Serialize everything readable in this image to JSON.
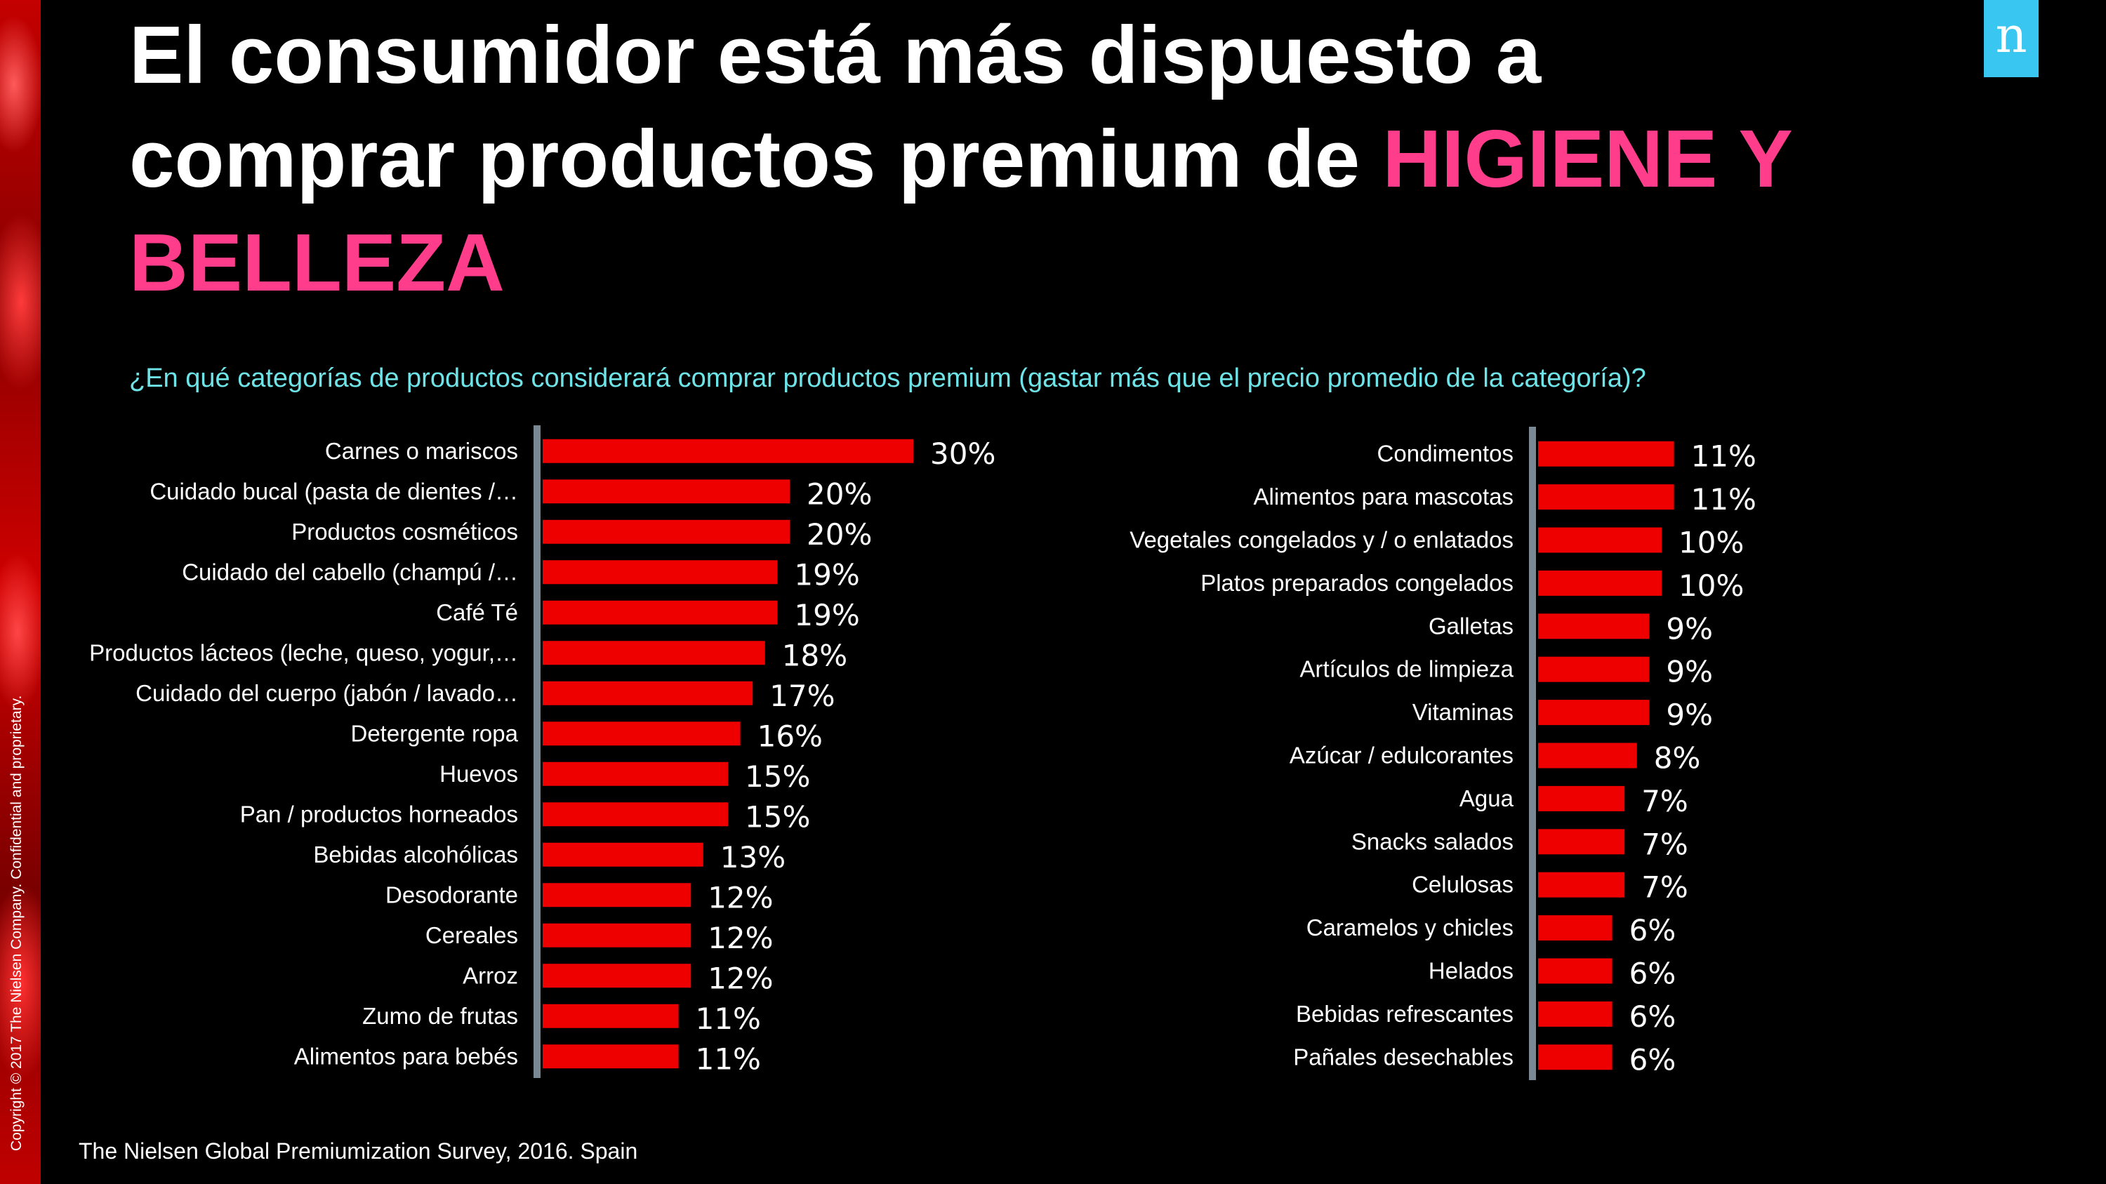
{
  "title": {
    "line1": "El consumidor está más dispuesto a",
    "line2": "comprar productos premium de ",
    "highlight_part1": "HIGIENE Y",
    "highlight_part2": "BELLEZA"
  },
  "logo": {
    "letter": "n"
  },
  "question": "¿En qué categorías de productos considerará comprar productos premium (gastar más que el precio promedio de la categoría)?",
  "source": "The Nielsen Global Premiumization Survey, 2016. Spain",
  "copyright": "Copyright © 2017 The Nielsen Company. Confidential and proprietary.",
  "colors": {
    "bar": "#ee0000",
    "axis": "#7a8893",
    "highlight": "#ff3d8b",
    "question": "#6fe4e8",
    "logo_bg": "#39c6f0"
  },
  "chart_data": [
    {
      "type": "bar",
      "orientation": "horizontal",
      "categories": [
        "Carnes o mariscos",
        "Cuidado bucal (pasta de dientes /…",
        "Productos cosméticos",
        "Cuidado del cabello (champú /…",
        "Café Té",
        "Productos lácteos (leche, queso, yogur,…",
        "Cuidado del cuerpo (jabón / lavado…",
        "Detergente ropa",
        "Huevos",
        "Pan / productos horneados",
        "Bebidas alcohólicas",
        "Desodorante",
        "Cereales",
        "Arroz",
        "Zumo de frutas",
        "Alimentos para bebés"
      ],
      "values": [
        30,
        20,
        20,
        19,
        19,
        18,
        17,
        16,
        15,
        15,
        13,
        12,
        12,
        12,
        11,
        11
      ],
      "value_labels": [
        "30%",
        "20%",
        "20%",
        "19%",
        "19%",
        "18%",
        "17%",
        "16%",
        "15%",
        "15%",
        "13%",
        "12%",
        "12%",
        "12%",
        "11%",
        "11%"
      ],
      "unit": "%"
    },
    {
      "type": "bar",
      "orientation": "horizontal",
      "categories": [
        "Condimentos",
        "Alimentos para mascotas",
        "Vegetales congelados y / o enlatados",
        "Platos preparados congelados",
        "Galletas",
        "Artículos de limpieza",
        "Vitaminas",
        "Azúcar / edulcorantes",
        "Agua",
        "Snacks salados",
        "Celulosas",
        "Caramelos y chicles",
        "Helados",
        "Bebidas refrescantes",
        "Pañales desechables"
      ],
      "values": [
        11,
        11,
        10,
        10,
        9,
        9,
        9,
        8,
        7,
        7,
        7,
        6,
        6,
        6,
        6
      ],
      "value_labels": [
        "11%",
        "11%",
        "10%",
        "10%",
        "9%",
        "9%",
        "9%",
        "8%",
        "7%",
        "7%",
        "7%",
        "6%",
        "6%",
        "6%",
        "6%"
      ],
      "unit": "%"
    }
  ]
}
